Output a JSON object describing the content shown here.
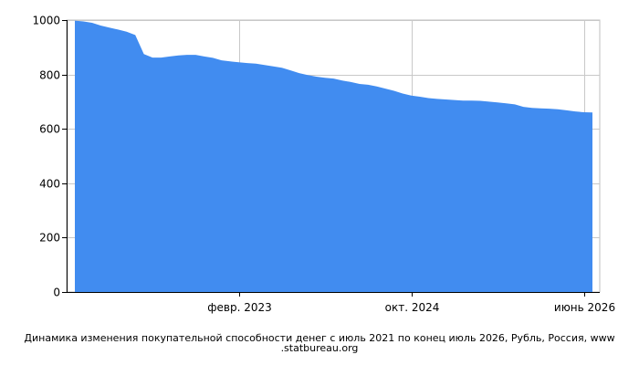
{
  "chart_data": {
    "type": "area",
    "title": "Динамика изменения покупательной способности денег с июль 2021 по конец июль 2026, Рубль, Россия, www .statbureau.org",
    "xlabel": "",
    "ylabel": "",
    "x_tick_labels": [
      "февр. 2023",
      "окт. 2024",
      "июнь 2026"
    ],
    "y_tick_labels": [
      "0",
      "200",
      "400",
      "600",
      "800",
      "1000"
    ],
    "ylim": [
      0,
      1000
    ],
    "grid": true,
    "color": "#418CF0",
    "x": [
      "2021-07",
      "2021-08",
      "2021-09",
      "2021-10",
      "2021-11",
      "2021-12",
      "2022-01",
      "2022-02",
      "2022-03",
      "2022-04",
      "2022-05",
      "2022-06",
      "2022-07",
      "2022-08",
      "2022-09",
      "2022-10",
      "2022-11",
      "2022-12",
      "2023-01",
      "2023-02",
      "2023-03",
      "2023-04",
      "2023-05",
      "2023-06",
      "2023-07",
      "2023-08",
      "2023-09",
      "2023-10",
      "2023-11",
      "2023-12",
      "2024-01",
      "2024-02",
      "2024-03",
      "2024-04",
      "2024-05",
      "2024-06",
      "2024-07",
      "2024-08",
      "2024-09",
      "2024-10",
      "2024-11",
      "2024-12",
      "2025-01",
      "2025-02",
      "2025-03",
      "2025-04",
      "2025-05",
      "2025-06",
      "2025-07",
      "2025-08",
      "2025-09",
      "2025-10",
      "2025-11",
      "2025-12",
      "2026-01",
      "2026-02",
      "2026-03",
      "2026-04",
      "2026-05",
      "2026-06",
      "2026-07"
    ],
    "values": [
      998,
      995,
      990,
      980,
      972,
      965,
      957,
      945,
      875,
      862,
      862,
      866,
      870,
      872,
      872,
      866,
      861,
      852,
      848,
      845,
      842,
      840,
      835,
      830,
      825,
      815,
      805,
      798,
      792,
      788,
      785,
      778,
      772,
      765,
      762,
      756,
      748,
      740,
      730,
      722,
      718,
      713,
      710,
      708,
      706,
      704,
      704,
      703,
      700,
      697,
      694,
      690,
      681,
      677,
      675,
      674,
      672,
      668,
      664,
      661,
      660
    ]
  }
}
